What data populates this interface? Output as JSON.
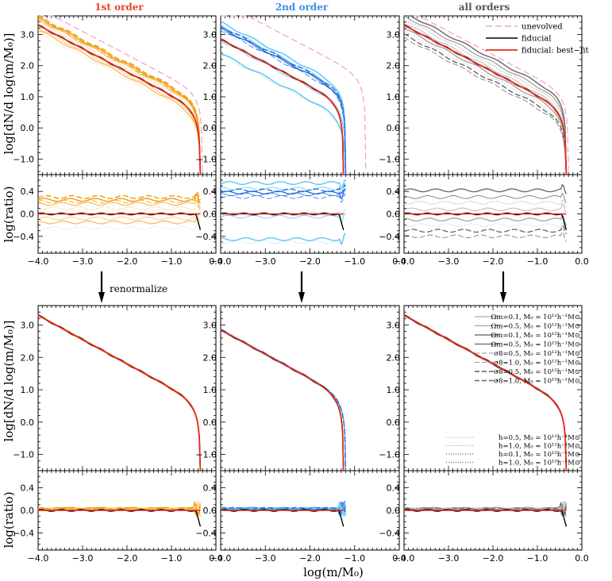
{
  "chart_data": {
    "type": "line",
    "xlabel": "log(m/M₀)",
    "ylabel_main": "log[dN/d log(m/M₀)]",
    "ylabel_ratio": "log(ratio)",
    "xlim": [
      -4.0,
      0.0
    ],
    "ylim_main": [
      -1.5,
      3.6
    ],
    "ylim_ratio": [
      -0.7,
      0.7
    ],
    "xticks": [
      "−4.0",
      "−3.0",
      "−2.0",
      "−1.0",
      "0.0"
    ],
    "yticks_main": [
      "3.0",
      "2.0",
      "1.0",
      "0.0",
      "−1.0"
    ],
    "yticks_main_bottom": [
      "3.0",
      "2.0",
      "1.0",
      "0.0",
      "−1.0"
    ],
    "yticks_ratio": [
      "0.4",
      "0.0",
      "−0.4"
    ],
    "columns": [
      {
        "title": "1st order",
        "color": "#e8432e",
        "family": "#f29b0d",
        "light": "#f8c16b",
        "end": -0.35,
        "fid_end": -0.35
      },
      {
        "title": "2nd order",
        "color": "#3b8fe8",
        "family": "#2a6fe0",
        "light": "#5fc8f0",
        "end": -1.2,
        "fid_end": -1.25
      },
      {
        "title": "all orders",
        "color": "#555555",
        "family": "#6e6e6e",
        "light": "#a8a8a8",
        "end": -0.35,
        "fid_end": -0.35
      }
    ],
    "top_legend": [
      {
        "label": "unevolved",
        "color": "#f4a6c8",
        "dash": "8,4",
        "width": 1.4
      },
      {
        "label": "fiducial",
        "color": "#000000",
        "dash": "",
        "width": 1.6
      },
      {
        "label": "fiducial: best−fit",
        "color": "#e82c1f",
        "dash": "",
        "width": 1.8
      }
    ],
    "bottom_legend_a": [
      {
        "label": "Ωm=0.1, M₀ = 10¹¹h⁻¹M⊙",
        "dash": "",
        "width": 0.7
      },
      {
        "label": "Ωm=0.5, M₀ = 10¹¹h⁻¹M⊙",
        "dash": "",
        "width": 0.7
      },
      {
        "label": "Ωm=0.1, M₀ = 10¹⁵h⁻¹M⊙",
        "dash": "",
        "width": 1.6
      },
      {
        "label": "Ωm=0.5, M₀ = 10¹⁵h⁻¹M⊙",
        "dash": "",
        "width": 1.6
      },
      {
        "label": "σ8=0.5, M₀ = 10¹¹h⁻¹M⊙",
        "dash": "6,3",
        "width": 0.8
      },
      {
        "label": "σ8=1.0, M₀ = 10¹¹h⁻¹M⊙",
        "dash": "6,3",
        "width": 0.8
      },
      {
        "label": "σ8=0.5, M₀ = 10¹⁵h⁻¹M⊙",
        "dash": "6,3",
        "width": 1.8
      },
      {
        "label": "σ8=1.0, M₀ = 10¹⁵h⁻¹M⊙",
        "dash": "6,3",
        "width": 1.8
      }
    ],
    "bottom_legend_b": [
      {
        "label": "h=0.5, M₀ = 10¹¹h⁻¹M⊙",
        "dash": "1,2",
        "width": 0.8
      },
      {
        "label": "h=1.0, M₀ = 10¹¹h⁻¹M⊙",
        "dash": "1,2",
        "width": 0.8
      },
      {
        "label": "h=0.1, M₀ = 10¹⁵h⁻¹M⊙",
        "dash": "1,2",
        "width": 1.6
      },
      {
        "label": "h=1.0, M₀ = 10¹⁵h⁻¹M⊙",
        "dash": "1,2",
        "width": 1.6
      }
    ],
    "annotation": "renormalize",
    "offsets_1st": [
      0.25,
      0.18,
      0.1,
      -0.08,
      -0.15,
      -0.25,
      0.3,
      0.22
    ],
    "offsets_2nd": [
      0.38,
      0.35,
      0.0,
      -0.05,
      -0.45,
      -0.5,
      0.55,
      0.45,
      0.42,
      0.3
    ],
    "offsets_all": [
      0.42,
      0.3,
      0.2,
      0.08,
      -0.1,
      -0.2,
      -0.3,
      -0.4
    ]
  }
}
